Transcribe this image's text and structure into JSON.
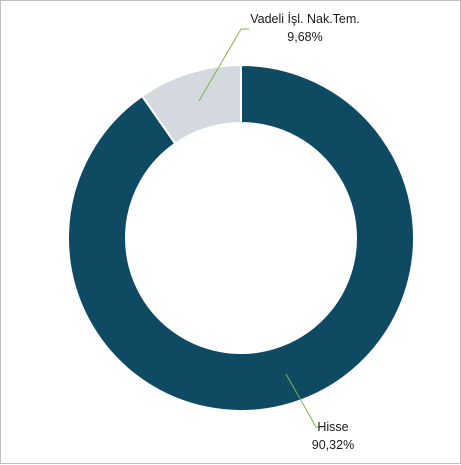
{
  "chart_data": {
    "type": "pie",
    "variant": "donut",
    "categories": [
      "Hisse",
      "Vadeli İşl. Nak.Tem."
    ],
    "values": [
      90.32,
      9.68
    ],
    "data_labels": [
      "90,32%",
      "9,68%"
    ],
    "colors": [
      "#0f4a63",
      "#d4d9df"
    ],
    "leader_line_color": "#7ab648",
    "title": "",
    "legend": "none"
  }
}
